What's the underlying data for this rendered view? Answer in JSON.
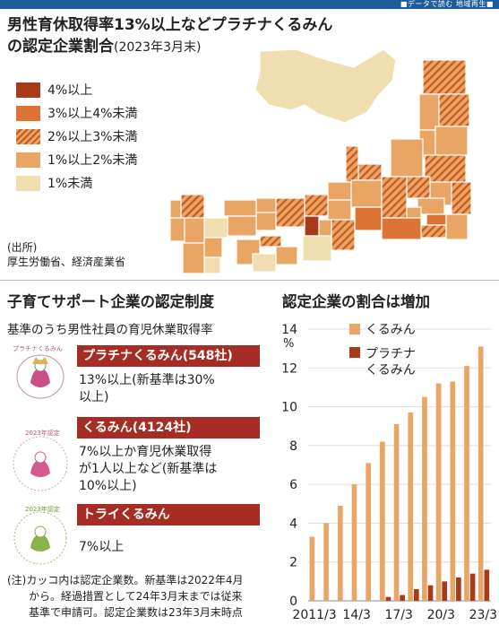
{
  "header": {
    "label": "■データで読む 地域再生■"
  },
  "map": {
    "title": "男性育休取得率13%以上などプラチナくるみん",
    "title_line2": "の認定企業割合",
    "date": "(2023年3月末)",
    "legend": [
      {
        "label": "4%以上",
        "color": "#a83a1c"
      },
      {
        "label": "3%以上4%未満",
        "color": "#dc7436"
      },
      {
        "label": "2%以上3%未満",
        "color": "hatch"
      },
      {
        "label": "1%以上2%未満",
        "color": "#e8a564"
      },
      {
        "label": "1%未満",
        "color": "#f1deb0"
      }
    ],
    "source_label": "(出所)",
    "source": "厚生労働省、経済産業省"
  },
  "system": {
    "title": "子育てサポート企業の認定制度",
    "subtitle": "基準のうち男性社員の育児休業取得率",
    "items": [
      {
        "name": "プラチナくるみん(548社)",
        "criteria": [
          "13%以上(新基準は30%",
          "以上)"
        ]
      },
      {
        "name": "くるみん(4124社)",
        "criteria": [
          "7%以上か育児休業取得",
          "が1人以上など(新基準は",
          "10%以上)"
        ]
      },
      {
        "name": "トライくるみん",
        "criteria": [
          "7%以上"
        ]
      }
    ],
    "logo_texts": [
      "プラチナくるみん",
      "2023年認定",
      "2023年認定"
    ],
    "note": [
      "(注)カッコ内は認定企業数。新基準は2022年4月",
      "から。経過措置として24年3月末までは従来",
      "基準で申請可。認定企業数は23年3月末時点"
    ]
  },
  "chart_title": "認定企業の割合は増加",
  "chart_data": {
    "type": "bar",
    "ylabel": "%",
    "ylim": [
      0,
      14
    ],
    "yticks": [
      0,
      2,
      4,
      6,
      8,
      10,
      12,
      14
    ],
    "xtick_labels": [
      "2011/3",
      "14/3",
      "17/3",
      "20/3",
      "23/3"
    ],
    "series": [
      {
        "name": "くるみん",
        "color": "#e8a564",
        "values": [
          3.3,
          4.0,
          4.9,
          6.0,
          7.1,
          8.2,
          9.1,
          9.7,
          10.5,
          11.2,
          11.3,
          12.1,
          13.1
        ]
      },
      {
        "name": "プラチナくるみん",
        "color": "#a83a1c",
        "values": [
          0,
          0,
          0,
          0,
          0,
          0.2,
          0.3,
          0.6,
          0.8,
          1.0,
          1.2,
          1.4,
          1.6
        ]
      }
    ],
    "legend": [
      "くるみん",
      "プラチナ",
      "くるみん"
    ]
  }
}
